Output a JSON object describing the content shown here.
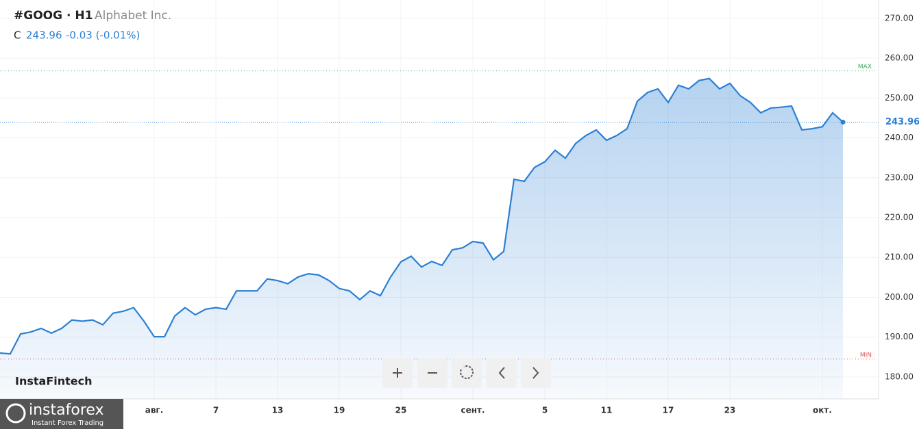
{
  "chart_data": {
    "type": "area",
    "title": "#GOOG · H1",
    "subtitle": "Alphabet Inc.",
    "close_prefix": "C",
    "change": "-0.03 (-0.01%)",
    "watermark": "InstaFintech",
    "brand": "instaforex",
    "brand_tagline": "Instant Forex Trading",
    "categories": [
      null,
      null,
      null,
      null,
      null,
      null,
      null,
      null,
      null,
      null,
      null,
      null,
      null,
      null,
      null,
      "авг.",
      null,
      null,
      null,
      null,
      null,
      "7",
      null,
      null,
      null,
      null,
      null,
      "13",
      null,
      null,
      null,
      null,
      null,
      "19",
      null,
      null,
      null,
      null,
      null,
      "25",
      null,
      null,
      null,
      null,
      null,
      null,
      "сент.",
      null,
      null,
      null,
      null,
      null,
      null,
      "5",
      null,
      null,
      null,
      null,
      null,
      "11",
      null,
      null,
      null,
      null,
      null,
      "17",
      null,
      null,
      null,
      null,
      null,
      "23",
      null,
      null,
      null,
      null,
      null,
      null,
      null,
      null,
      "окт.",
      null,
      null
    ],
    "series": [
      {
        "name": "#GOOG",
        "color": "#2b7fd4",
        "values": [
          186.0,
          185.8,
          190.8,
          191.3,
          192.2,
          191.0,
          192.2,
          194.3,
          194.0,
          194.3,
          193.1,
          196.0,
          196.5,
          197.4,
          194.0,
          190.1,
          190.1,
          195.3,
          197.4,
          195.6,
          197.0,
          197.4,
          197.0,
          201.6,
          201.6,
          201.6,
          204.6,
          204.2,
          203.4,
          205.1,
          205.9,
          205.6,
          204.2,
          202.2,
          201.6,
          199.4,
          201.6,
          200.4,
          205.1,
          208.9,
          210.3,
          207.6,
          209.0,
          208.0,
          211.9,
          212.4,
          214.0,
          213.6,
          209.4,
          211.5,
          229.6,
          229.1,
          232.6,
          234.0,
          236.9,
          234.9,
          238.6,
          240.6,
          242.0,
          239.4,
          240.6,
          242.3,
          249.2,
          251.4,
          252.3,
          248.9,
          253.2,
          252.3,
          254.4,
          254.9,
          252.3,
          253.7,
          250.6,
          248.9,
          246.3,
          247.5,
          247.7,
          248.0,
          242.0,
          242.3,
          242.8,
          246.3,
          243.96
        ]
      }
    ],
    "ylim": [
      174.5,
      274.6
    ],
    "yticks": [
      {
        "value": 180,
        "label": "180.00"
      },
      {
        "value": 190,
        "label": "190.00"
      },
      {
        "value": 200,
        "label": "200.00"
      },
      {
        "value": 210,
        "label": "210.00"
      },
      {
        "value": 220,
        "label": "220.00"
      },
      {
        "value": 230,
        "label": "230.00"
      },
      {
        "value": 240,
        "label": "240.00"
      },
      {
        "value": 250,
        "label": "250.00"
      },
      {
        "value": 260,
        "label": "260.00"
      },
      {
        "value": 270,
        "label": "270.00"
      }
    ],
    "max_line": {
      "label": "MAX",
      "value": 256.8,
      "color": "#3aa565"
    },
    "min_line": {
      "label": "MIN",
      "value": 184.5,
      "color": "#e05555"
    },
    "grid": true
  }
}
